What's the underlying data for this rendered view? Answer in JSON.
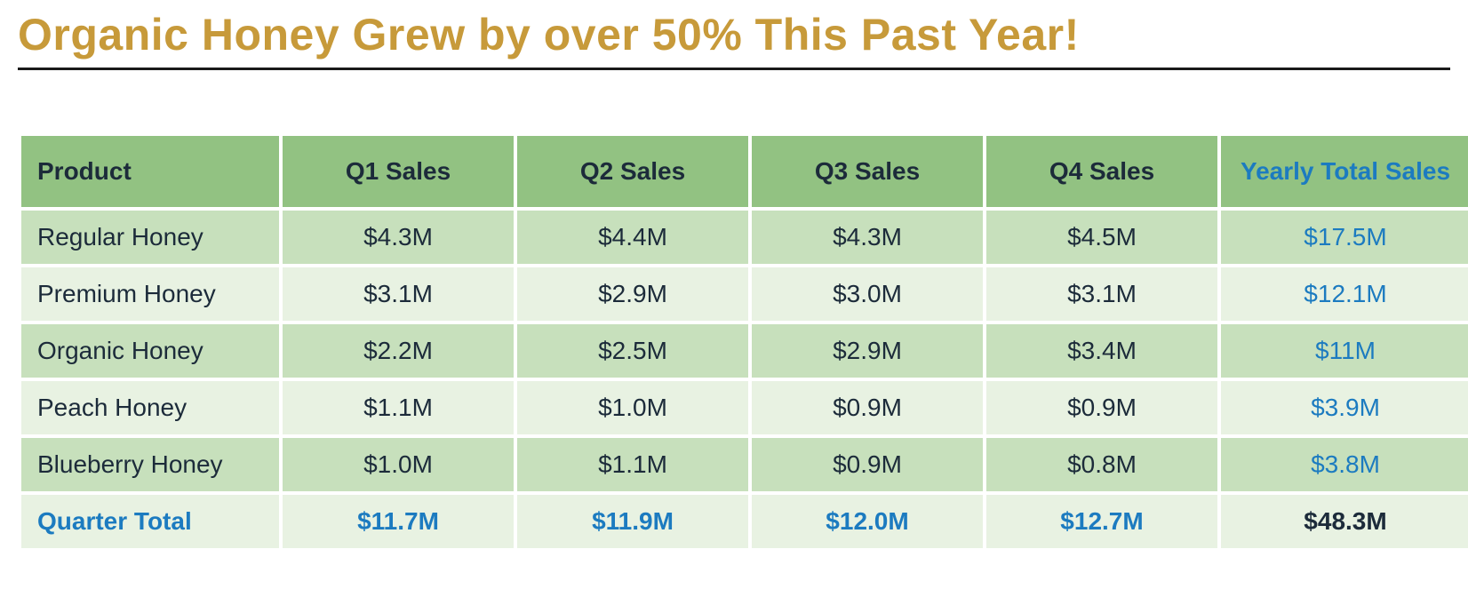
{
  "title": {
    "text": "Organic Honey Grew by over 50% This Past Year!",
    "color": "#c79a3a",
    "rule_color": "#1a1a1a"
  },
  "table": {
    "colors": {
      "header_bg": "#92c282",
      "header_text": "#1c2b3a",
      "row_odd_bg": "#c7e0bc",
      "row_even_bg": "#e8f2e2",
      "cell_text": "#1c2b3a",
      "accent_blue": "#1c7bc0",
      "grand_total_text": "#1c2b3a"
    },
    "column_widths": [
      "290px",
      "260px",
      "260px",
      "260px",
      "260px",
      "280px"
    ],
    "columns": [
      "Product",
      "Q1 Sales",
      "Q2 Sales",
      "Q3 Sales",
      "Q4 Sales",
      "Yearly Total Sales"
    ],
    "rows": [
      {
        "product": "Regular Honey",
        "q1": "$4.3M",
        "q2": "$4.4M",
        "q3": "$4.3M",
        "q4": "$4.5M",
        "total": "$17.5M"
      },
      {
        "product": "Premium Honey",
        "q1": "$3.1M",
        "q2": "$2.9M",
        "q3": "$3.0M",
        "q4": "$3.1M",
        "total": "$12.1M"
      },
      {
        "product": "Organic Honey",
        "q1": "$2.2M",
        "q2": "$2.5M",
        "q3": "$2.9M",
        "q4": "$3.4M",
        "total": "$11M"
      },
      {
        "product": "Peach Honey",
        "q1": "$1.1M",
        "q2": "$1.0M",
        "q3": "$0.9M",
        "q4": "$0.9M",
        "total": "$3.9M"
      },
      {
        "product": "Blueberry Honey",
        "q1": "$1.0M",
        "q2": "$1.1M",
        "q3": "$0.9M",
        "q4": "$0.8M",
        "total": "$3.8M"
      }
    ],
    "totals": {
      "label": "Quarter Total",
      "q1": "$11.7M",
      "q2": "$11.9M",
      "q3": "$12.0M",
      "q4": "$12.7M",
      "grand": "$48.3M"
    }
  }
}
